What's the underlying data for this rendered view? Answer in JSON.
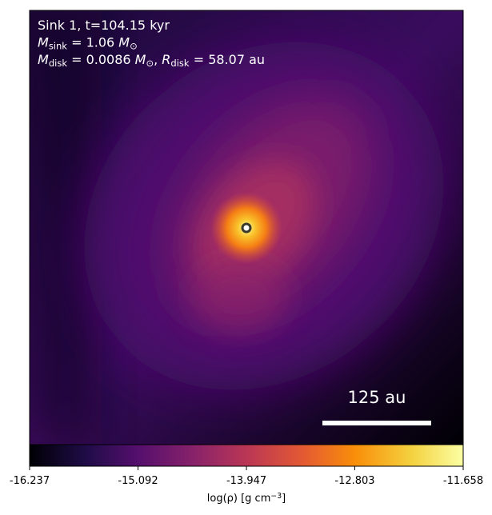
{
  "chart_data": {
    "type": "image",
    "colormap": "inferno",
    "annotations": [
      [
        {
          "text": "Sink 1, t=104.15 kyr"
        }
      ],
      [
        {
          "text": "M",
          "italic": true
        },
        {
          "text": "sink",
          "sub": true
        },
        {
          "text": " = 1.06 "
        },
        {
          "text": "M",
          "italic": true
        },
        {
          "text": "⊙",
          "sub": true
        }
      ],
      [
        {
          "text": "M",
          "italic": true
        },
        {
          "text": "disk",
          "sub": true
        },
        {
          "text": " = 0.0086 "
        },
        {
          "text": "M",
          "italic": true
        },
        {
          "text": "⊙",
          "sub": true
        },
        {
          "text": ", "
        },
        {
          "text": "R",
          "italic": true
        },
        {
          "text": "disk",
          "sub": true
        },
        {
          "text": " = 58.07 au"
        }
      ]
    ],
    "scale_bar_label": "125 au",
    "colorbar": {
      "label": [
        {
          "text": "log(ρ) [g cm"
        },
        {
          "text": "−3",
          "sup": true
        },
        {
          "text": "]"
        }
      ],
      "clim": [
        -16.237,
        -11.658
      ],
      "ticks": [
        -16.237,
        -15.092,
        -13.947,
        -12.803,
        -11.658
      ]
    }
  }
}
